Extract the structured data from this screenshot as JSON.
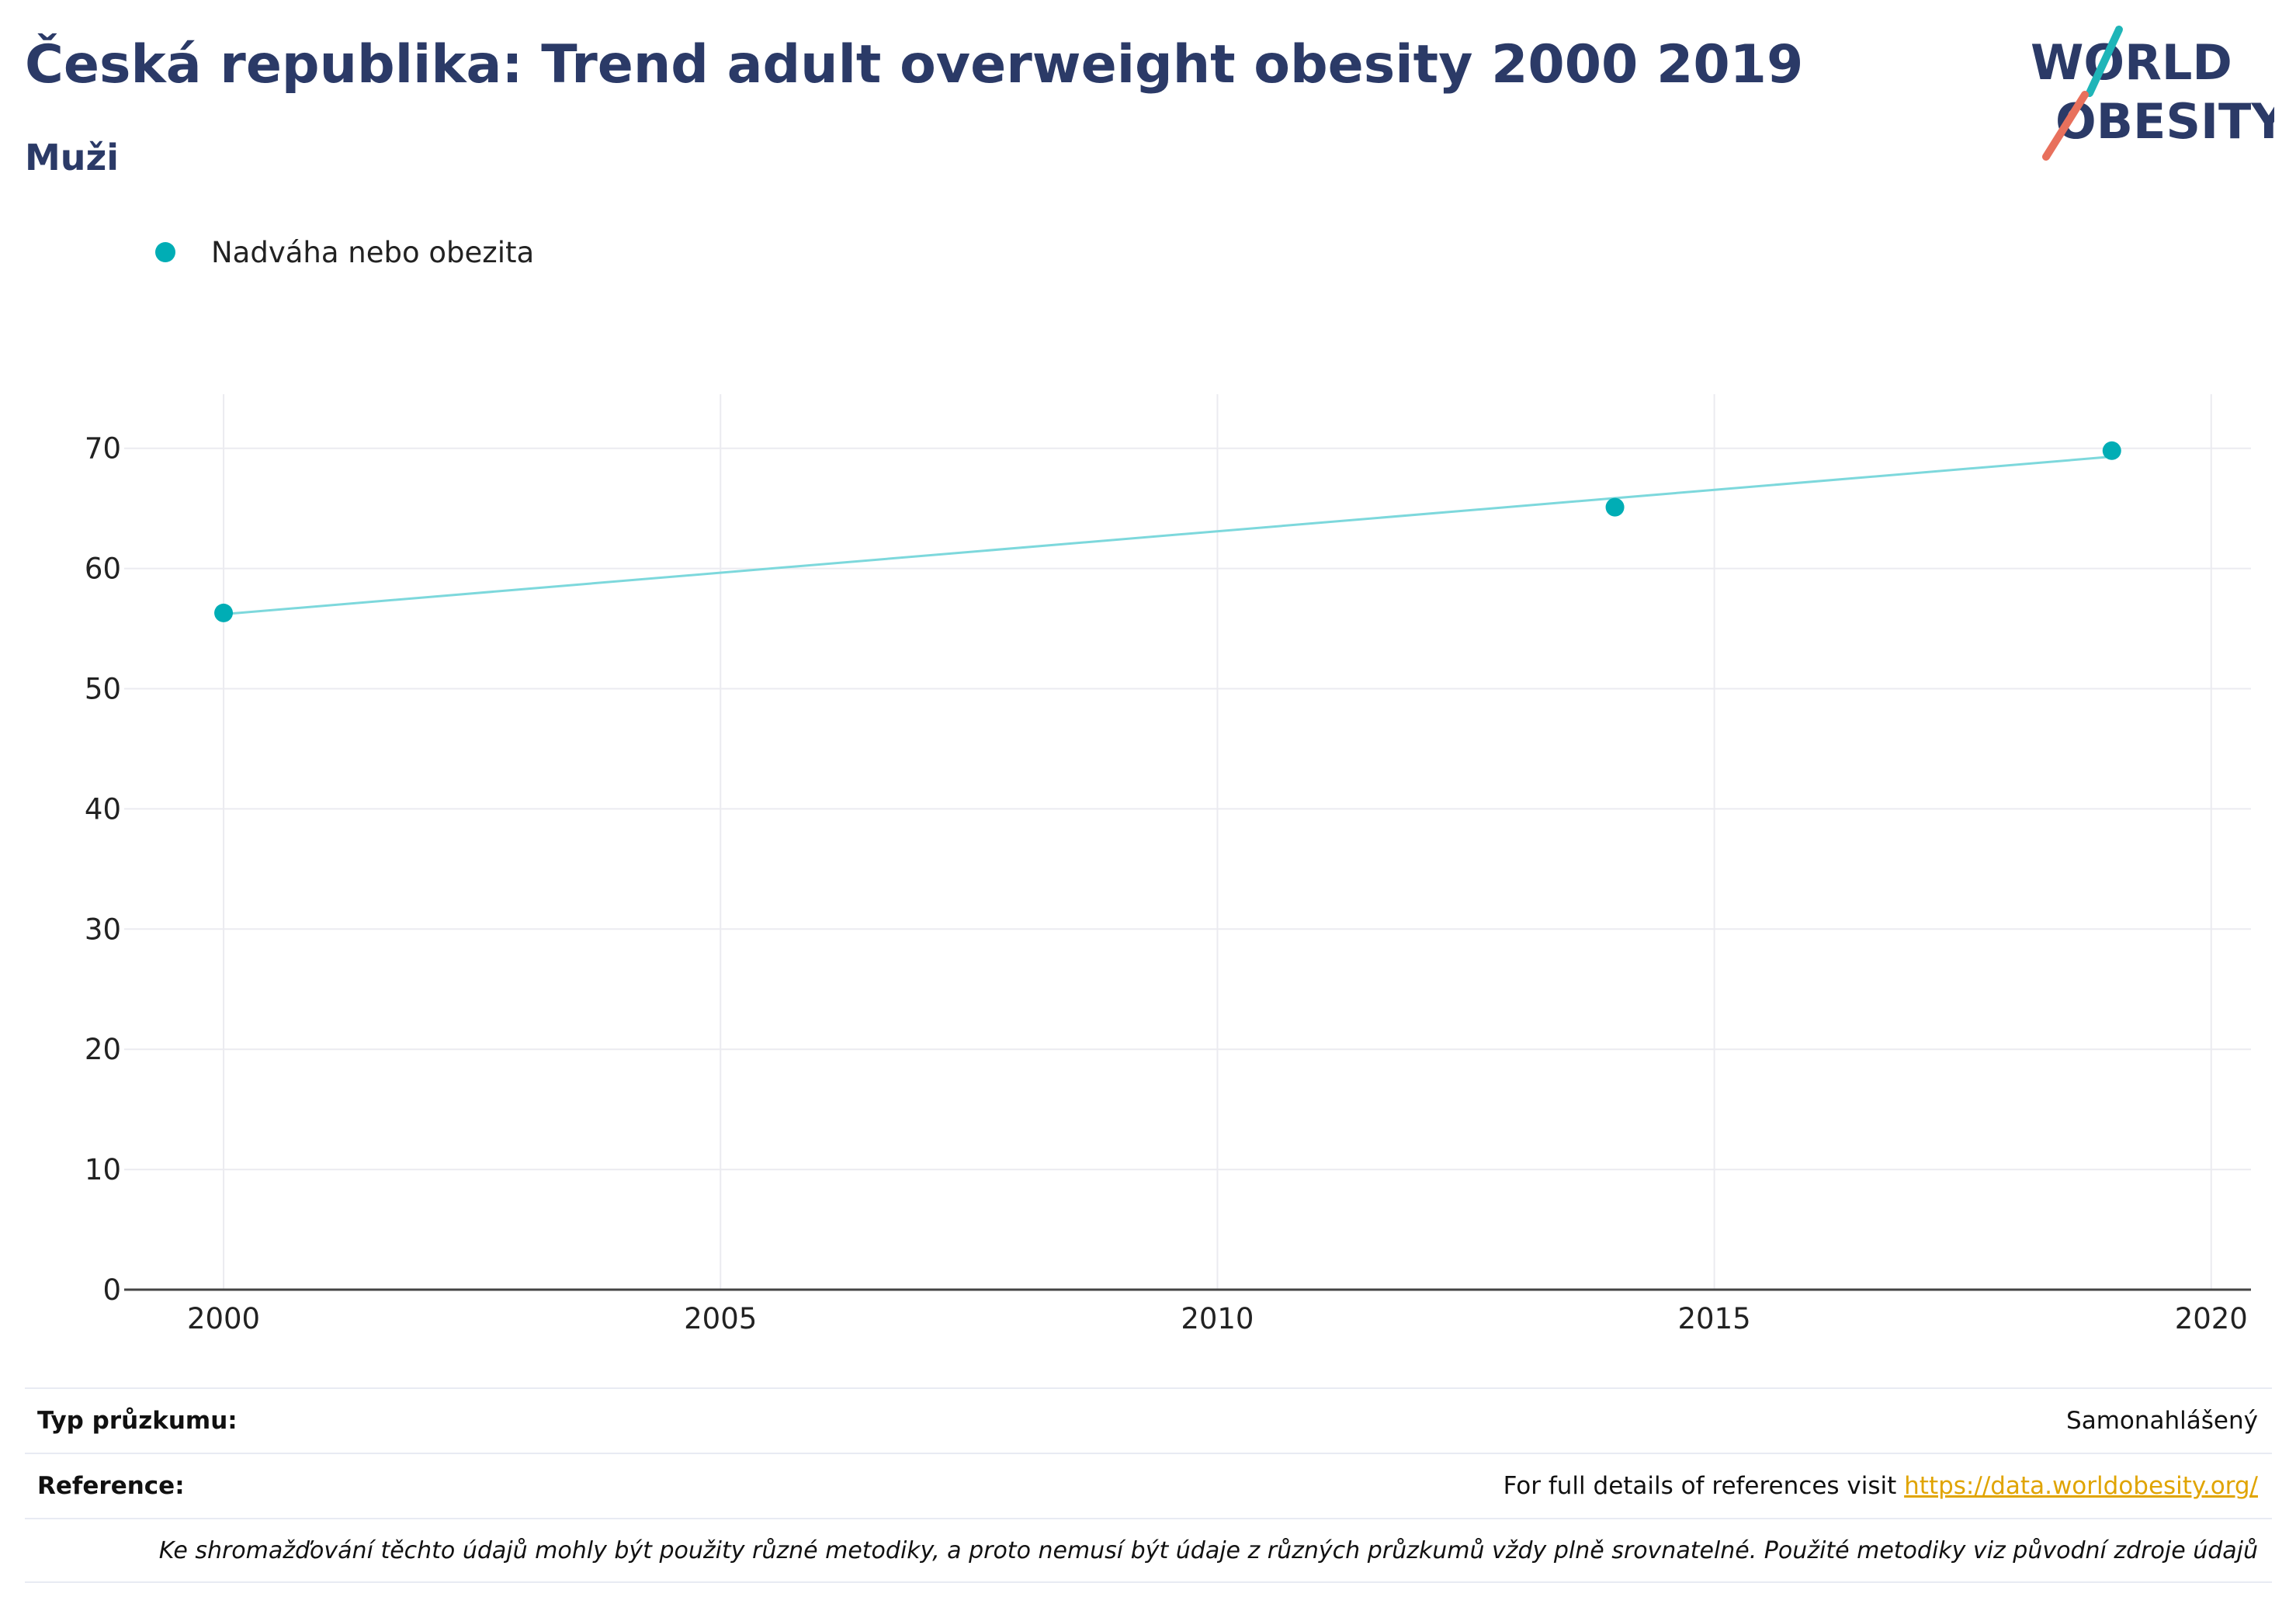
{
  "header": {
    "title": "Česká republika: Trend adult overweight obesity 2000 2019",
    "subtitle": "Muži"
  },
  "logo": {
    "line1": "WORLD",
    "line2": "OBESITY",
    "accent_teal": "#1fb5b8",
    "accent_coral": "#e8705c",
    "text_color": "#2b3a67"
  },
  "colors": {
    "series": "#00adb5",
    "trend_line": "#7dd8dc",
    "title": "#2b3a67",
    "link": "#e0a400"
  },
  "chart_data": {
    "type": "scatter",
    "title": "Česká republika: Trend adult overweight obesity 2000 2019",
    "subtitle": "Muži",
    "xlabel": "",
    "ylabel": "",
    "xlim": [
      1999,
      2020.4
    ],
    "ylim": [
      0,
      74.5
    ],
    "x_ticks": [
      "2000",
      "2005",
      "2010",
      "2015",
      "2020"
    ],
    "y_ticks": [
      "0",
      "10",
      "20",
      "30",
      "40",
      "50",
      "60",
      "70"
    ],
    "grid": true,
    "legend_position": "top-left",
    "series": [
      {
        "name": "Nadváha nebo obezita",
        "x": [
          2000,
          2014,
          2019
        ],
        "y": [
          56.3,
          65.1,
          69.8
        ]
      }
    ],
    "trend_line": {
      "x": [
        2000,
        2019
      ],
      "y": [
        56.2,
        69.3
      ]
    }
  },
  "footer": {
    "survey_type_label": "Typ průzkumu:",
    "survey_type_value": "Samonahlášený",
    "reference_label": "Reference:",
    "reference_text": "For full details of references visit",
    "reference_link": "https://data.worldobesity.org/",
    "note": "Ke shromažďování těchto údajů mohly být použity různé metodiky, a proto nemusí být údaje z různých průzkumů vždy plně srovnatelné. Použité metodiky viz původní zdroje údajů"
  }
}
